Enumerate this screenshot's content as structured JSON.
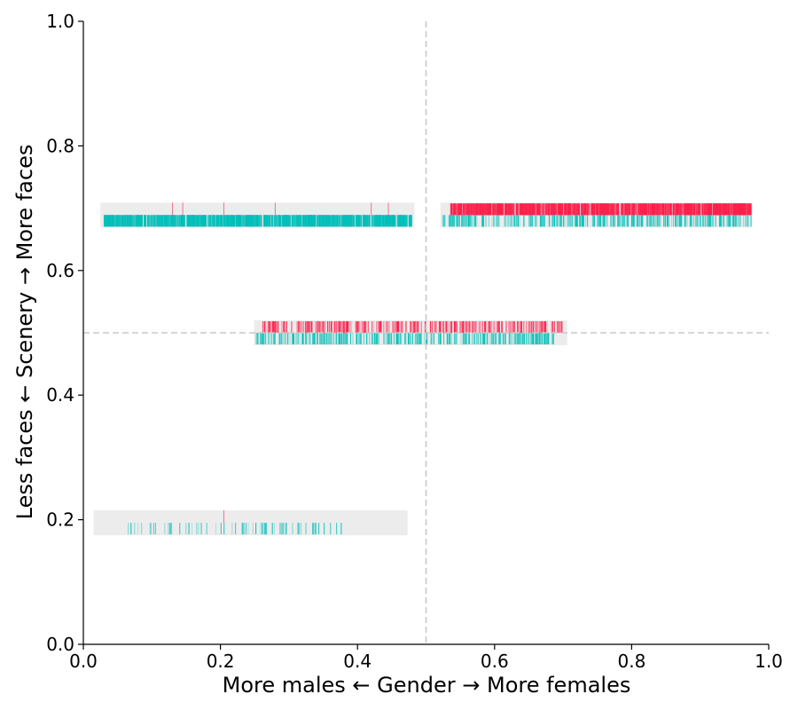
{
  "chart_data": {
    "type": "scatter",
    "title": "",
    "xlabel": "More males ← Gender → More females",
    "ylabel": "Less faces ← Scenery → More faces",
    "xlim": [
      0.0,
      1.0
    ],
    "ylim": [
      0.0,
      1.0
    ],
    "xticks": [
      "0.0",
      "0.2",
      "0.4",
      "0.6",
      "0.8",
      "1.0"
    ],
    "yticks": [
      "0.0",
      "0.2",
      "0.4",
      "0.6",
      "0.8",
      "1.0"
    ],
    "grid": false,
    "reference_lines": {
      "x": 0.5,
      "y": 0.5
    },
    "colors": {
      "female_ticks": "#ff1f4b",
      "male_ticks": "#00bfb8",
      "band_background": "#ececec",
      "reference_line": "#c8c8c8"
    },
    "clusters": [
      {
        "x_range": [
          0.025,
          0.483
        ],
        "y_range": [
          0.669,
          0.709
        ],
        "female_ticks": [
          0.13,
          0.145,
          0.205,
          0.28,
          0.42,
          0.445
        ],
        "male_tick_density": "very dense",
        "male_tick_span": [
          0.03,
          0.48
        ]
      },
      {
        "x_range": [
          0.521,
          0.976
        ],
        "y_range": [
          0.669,
          0.709
        ],
        "female_tick_density": "very dense",
        "female_tick_span": [
          0.535,
          0.975
        ],
        "male_tick_density": "moderate",
        "male_tick_span": [
          0.523,
          0.975
        ]
      },
      {
        "x_range": [
          0.249,
          0.706
        ],
        "y_range": [
          0.48,
          0.52
        ],
        "female_tick_density": "moderate",
        "female_tick_span": [
          0.26,
          0.7
        ],
        "male_tick_density": "moderate",
        "male_tick_span": [
          0.25,
          0.69
        ]
      },
      {
        "x_range": [
          0.015,
          0.473
        ],
        "y_range": [
          0.175,
          0.215
        ],
        "female_ticks": [
          0.205
        ],
        "male_tick_density": "sparse",
        "male_tick_span": [
          0.045,
          0.38
        ]
      }
    ]
  }
}
